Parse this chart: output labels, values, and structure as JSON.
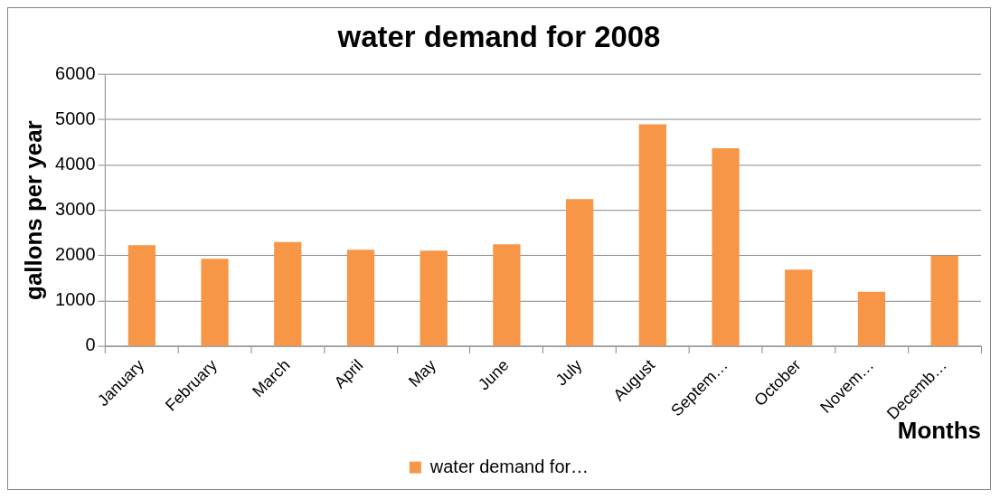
{
  "chart_data": {
    "type": "bar",
    "title": "water demand for 2008",
    "xlabel": "Months",
    "ylabel": "gallons per year",
    "categories": [
      "January",
      "February",
      "March",
      "April",
      "May",
      "June",
      "July",
      "August",
      "Septem…",
      "October",
      "Novem…",
      "Decemb…"
    ],
    "series": [
      {
        "name": "water demand for…",
        "color": "#f79646",
        "values": [
          2230,
          1930,
          2300,
          2130,
          2110,
          2250,
          3250,
          4900,
          4370,
          1690,
          1200,
          2000
        ]
      }
    ],
    "ylim": [
      0,
      6000
    ],
    "yticks": [
      0,
      1000,
      2000,
      3000,
      4000,
      5000,
      6000
    ],
    "grid": "y",
    "legend": "bottom"
  }
}
